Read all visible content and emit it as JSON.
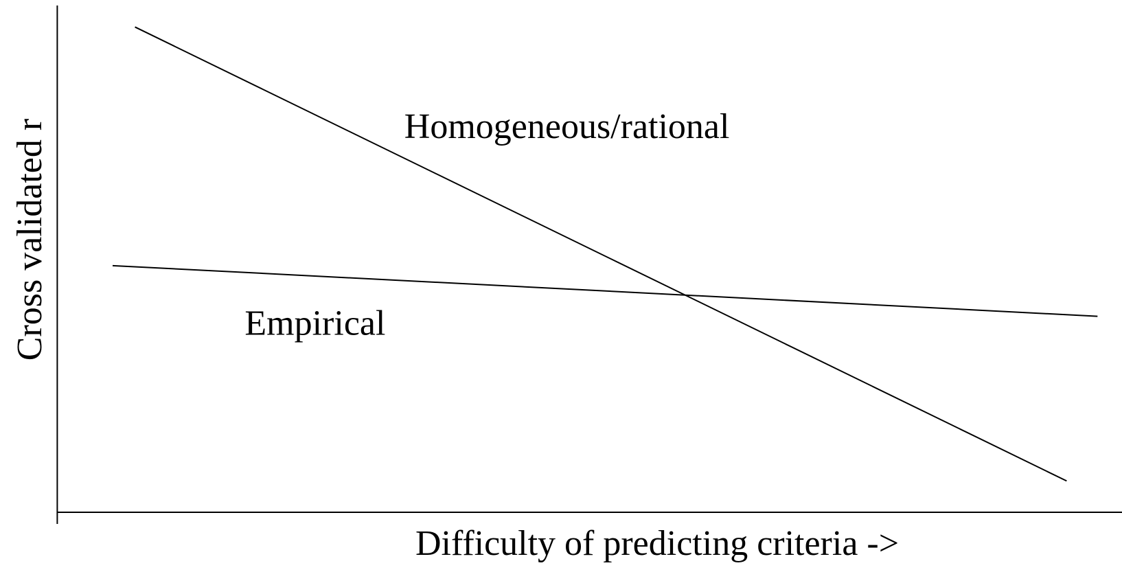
{
  "chart_data": {
    "type": "line",
    "x_label": "Difficulty of predicting criteria ->",
    "y_label": "Cross validated r",
    "xlim": [
      0,
      100
    ],
    "ylim": [
      0,
      100
    ],
    "series": [
      {
        "name": "Homogeneous/rational",
        "color": "#000000",
        "x": [
          7.3,
          94.8
        ],
        "values": [
          95.8,
          6.2
        ]
      },
      {
        "name": "Empirical",
        "color": "#000000",
        "x": [
          5.2,
          97.7
        ],
        "values": [
          48.7,
          38.7
        ]
      }
    ]
  }
}
